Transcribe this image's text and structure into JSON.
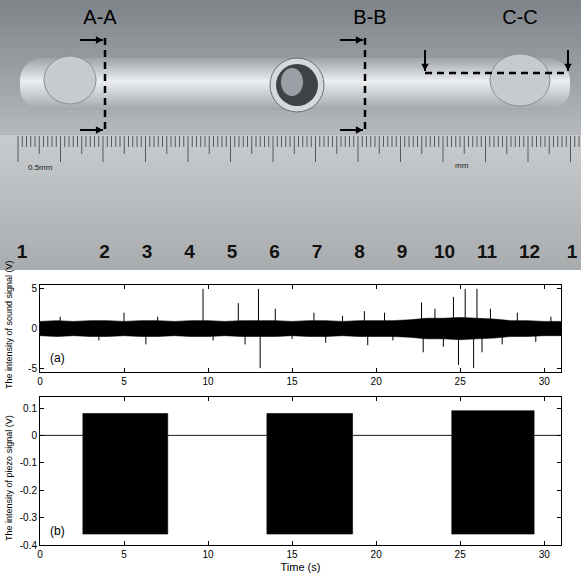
{
  "photo": {
    "section_labels": [
      "A-A",
      "B-B",
      "C-C"
    ],
    "ruler_labels": [
      "1",
      "2",
      "3",
      "4",
      "5",
      "6",
      "7",
      "8",
      "9",
      "10",
      "11",
      "12",
      "1"
    ],
    "ruler_small_labels": [
      "0.5mm",
      "mm"
    ]
  },
  "chart_data": [
    {
      "type": "line",
      "y_label": "The intensity of sound signal (V)",
      "annotations": [
        "(a)"
      ],
      "xlim": [
        0,
        31
      ],
      "xticks": [
        0,
        5,
        10,
        15,
        20,
        25,
        30
      ],
      "ylim": [
        -5.5,
        5.5
      ],
      "yticks": [
        -5,
        0,
        5
      ],
      "grid": false,
      "series": [
        {
          "type": "line",
          "color": "#000000",
          "x": [
            0,
            1,
            2,
            3,
            4,
            5,
            6,
            7,
            8,
            9,
            10,
            11,
            12,
            13,
            14,
            15,
            16,
            17,
            18,
            19,
            20,
            21,
            22,
            23,
            24,
            25,
            26,
            27,
            28,
            29,
            30,
            31
          ],
          "values": [
            0.9,
            1.0,
            0.9,
            1.0,
            1.0,
            0.9,
            1.0,
            1.0,
            0.9,
            1.0,
            1.0,
            0.9,
            1.0,
            1.0,
            1.0,
            0.9,
            1.0,
            1.0,
            0.9,
            1.0,
            1.0,
            1.0,
            1.1,
            1.3,
            1.3,
            1.4,
            1.3,
            1.2,
            1.0,
            1.0,
            0.9,
            0.9
          ]
        },
        {
          "type": "area",
          "color": "#000000",
          "x": [
            0,
            1,
            2,
            3,
            4,
            5,
            6,
            7,
            8,
            9,
            10,
            11,
            12,
            13,
            14,
            15,
            16,
            17,
            18,
            19,
            20,
            21,
            22,
            23,
            24,
            25,
            26,
            27,
            28,
            29,
            30,
            31
          ],
          "values": [
            -0.9,
            -1.0,
            -0.9,
            -1.0,
            -1.0,
            -0.9,
            -1.0,
            -1.0,
            -0.9,
            -1.0,
            -1.0,
            -0.9,
            -1.0,
            -1.0,
            -1.0,
            -0.9,
            -1.0,
            -1.0,
            -0.9,
            -1.0,
            -1.0,
            -1.0,
            -1.1,
            -1.3,
            -1.3,
            -1.4,
            -1.3,
            -1.2,
            -1.0,
            -1.0,
            -0.9,
            -0.9
          ]
        },
        {
          "type": "spikes",
          "color": "#000000",
          "x": [
            1.2,
            3.5,
            5.0,
            6.3,
            7.0,
            9.7,
            10.3,
            11.8,
            12.2,
            13.0,
            13.1,
            14.0,
            15.0,
            16.3,
            17.0,
            18.0,
            19.3,
            19.5,
            20.5,
            21.0,
            22.7,
            22.8,
            23.5,
            24.0,
            24.6,
            24.9,
            25.3,
            25.8,
            26.0,
            26.3,
            26.8,
            27.5,
            28.4,
            29.5,
            30.4
          ],
          "values": [
            1.5,
            -1.5,
            2.0,
            -2.0,
            1.5,
            5.0,
            -1.5,
            3.2,
            -2.0,
            5.0,
            -5.0,
            2.5,
            -1.3,
            2.0,
            -1.8,
            1.6,
            2.2,
            -2.1,
            2.0,
            -1.5,
            3.3,
            -3.0,
            2.5,
            -2.3,
            4.0,
            -4.6,
            5.0,
            -5.0,
            5.0,
            -3.0,
            2.5,
            -2.0,
            2.0,
            -1.7,
            1.5
          ]
        }
      ]
    },
    {
      "type": "line",
      "x_label": "Time (s)",
      "y_label": "The intensity of piezo signal (V)",
      "annotations": [
        "(b)"
      ],
      "xlim": [
        0,
        31
      ],
      "xticks": [
        0,
        5,
        10,
        15,
        20,
        25,
        30
      ],
      "ylim": [
        -0.4,
        0.14
      ],
      "yticks": [
        -0.4,
        -0.3,
        -0.2,
        -0.1,
        0,
        0.1
      ],
      "grid": false,
      "series": [
        {
          "type": "line",
          "color": "#000000",
          "x": [
            0,
            2.55,
            2.55,
            7.6,
            7.6,
            13.5,
            13.5,
            18.6,
            18.6,
            24.5,
            24.5,
            29.4,
            29.4,
            31
          ],
          "values": [
            0,
            0,
            0.08,
            0.08,
            0,
            0,
            0.08,
            0.08,
            0,
            0,
            0.09,
            0.09,
            0,
            0
          ]
        },
        {
          "type": "area",
          "color": "#000000",
          "x": [
            0,
            2.55,
            2.55,
            7.6,
            7.6,
            13.5,
            13.5,
            18.6,
            18.6,
            24.5,
            24.5,
            29.4,
            29.4,
            31
          ],
          "values": [
            0,
            0,
            -0.36,
            -0.36,
            0,
            0,
            -0.36,
            -0.36,
            0,
            0,
            -0.36,
            -0.36,
            0,
            0
          ]
        }
      ]
    }
  ]
}
